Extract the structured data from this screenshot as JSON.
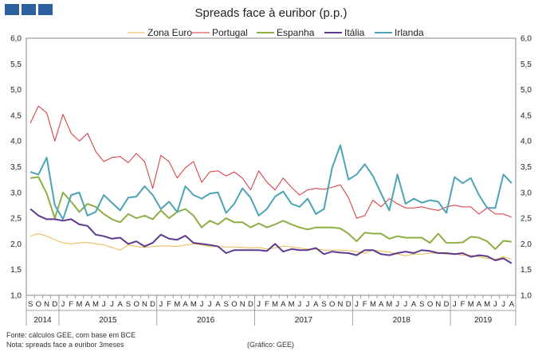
{
  "chart_data": {
    "type": "line",
    "title": "Spreads face à euribor (p.p.)",
    "ylim": [
      1.0,
      6.0
    ],
    "yticks": [
      "1,0",
      "1,5",
      "2,0",
      "2,5",
      "3,0",
      "3,5",
      "4,0",
      "4,5",
      "5,0",
      "5,5",
      "6,0"
    ],
    "month_labels": [
      "S",
      "O",
      "N",
      "D",
      "J",
      "F",
      "M",
      "A",
      "M",
      "J",
      "J",
      "A",
      "S",
      "O",
      "N",
      "D",
      "J",
      "F",
      "M",
      "A",
      "M",
      "J",
      "J",
      "A",
      "S",
      "O",
      "N",
      "D",
      "J",
      "F",
      "M",
      "A",
      "M",
      "J",
      "J",
      "A",
      "S",
      "O",
      "N",
      "D",
      "J",
      "F",
      "M",
      "A",
      "M",
      "J",
      "J",
      "A",
      "S",
      "O",
      "N",
      "D",
      "J",
      "F",
      "M",
      "A",
      "M",
      "J",
      "J",
      "A"
    ],
    "years": [
      {
        "label": "2014",
        "start": 0,
        "end": 3
      },
      {
        "label": "2015",
        "start": 4,
        "end": 15
      },
      {
        "label": "2016",
        "start": 16,
        "end": 27
      },
      {
        "label": "2017",
        "start": 28,
        "end": 39
      },
      {
        "label": "2018",
        "start": 40,
        "end": 51
      },
      {
        "label": "2019",
        "start": 52,
        "end": 59
      }
    ],
    "series": [
      {
        "name": "Zona Euro",
        "color": "#E6B84A",
        "width": 1.0,
        "values": [
          2.15,
          2.2,
          2.15,
          2.08,
          2.02,
          2.0,
          2.02,
          2.03,
          2.0,
          1.98,
          1.93,
          1.88,
          1.98,
          1.95,
          1.93,
          1.95,
          1.96,
          1.96,
          1.95,
          1.98,
          2.0,
          1.98,
          1.95,
          1.95,
          1.94,
          1.94,
          1.93,
          1.92,
          1.93,
          1.9,
          1.92,
          1.96,
          1.94,
          1.92,
          1.9,
          1.9,
          1.88,
          1.88,
          1.88,
          1.87,
          1.85,
          1.82,
          1.88,
          1.86,
          1.84,
          1.8,
          1.77,
          1.8,
          1.8,
          1.82,
          1.82,
          1.8,
          1.8,
          1.78,
          1.78,
          1.75,
          1.72,
          1.7,
          1.75,
          1.7
        ]
      },
      {
        "name": "Portugal",
        "color": "#D9333A",
        "width": 1.0,
        "values": [
          4.35,
          4.68,
          4.55,
          4.0,
          4.52,
          4.15,
          4.0,
          4.15,
          3.8,
          3.6,
          3.68,
          3.7,
          3.58,
          3.76,
          3.6,
          3.08,
          3.72,
          3.6,
          3.28,
          3.48,
          3.6,
          3.2,
          3.4,
          3.42,
          3.32,
          3.4,
          3.28,
          3.05,
          3.42,
          3.2,
          3.05,
          3.28,
          3.1,
          2.95,
          3.05,
          3.08,
          3.06,
          3.1,
          3.15,
          2.9,
          2.5,
          2.55,
          2.85,
          2.72,
          2.88,
          2.78,
          2.7,
          2.7,
          2.72,
          2.68,
          2.65,
          2.72,
          2.75,
          2.72,
          2.72,
          2.58,
          2.7,
          2.58,
          2.58,
          2.52
        ]
      },
      {
        "name": "Espanha",
        "color": "#8DAE45",
        "width": 2.0,
        "values": [
          3.28,
          3.3,
          2.98,
          2.5,
          3.0,
          2.82,
          2.62,
          2.78,
          2.72,
          2.58,
          2.48,
          2.42,
          2.58,
          2.5,
          2.55,
          2.48,
          2.65,
          2.5,
          2.62,
          2.68,
          2.55,
          2.32,
          2.45,
          2.38,
          2.5,
          2.42,
          2.42,
          2.32,
          2.4,
          2.32,
          2.38,
          2.45,
          2.38,
          2.32,
          2.28,
          2.32,
          2.32,
          2.32,
          2.3,
          2.2,
          2.05,
          2.22,
          2.2,
          2.2,
          2.1,
          2.15,
          2.12,
          2.12,
          2.12,
          2.02,
          2.2,
          2.02,
          2.02,
          2.03,
          2.14,
          2.12,
          2.05,
          1.9,
          2.06,
          2.04
        ]
      },
      {
        "name": "Itália",
        "color": "#5E3A8E",
        "width": 2.0,
        "values": [
          2.68,
          2.55,
          2.48,
          2.48,
          2.45,
          2.48,
          2.38,
          2.35,
          2.18,
          2.15,
          2.1,
          2.12,
          2.0,
          2.05,
          1.95,
          2.02,
          2.18,
          2.1,
          2.08,
          2.16,
          2.02,
          2.0,
          1.98,
          1.95,
          1.82,
          1.88,
          1.88,
          1.88,
          1.88,
          1.86,
          2.0,
          1.85,
          1.9,
          1.88,
          1.88,
          1.92,
          1.8,
          1.85,
          1.83,
          1.82,
          1.78,
          1.88,
          1.88,
          1.8,
          1.78,
          1.82,
          1.85,
          1.82,
          1.88,
          1.86,
          1.82,
          1.82,
          1.8,
          1.82,
          1.75,
          1.78,
          1.76,
          1.68,
          1.72,
          1.62
        ]
      },
      {
        "name": "Irlanda",
        "color": "#4CA3B6",
        "width": 2.0,
        "values": [
          3.4,
          3.35,
          3.68,
          2.75,
          2.48,
          2.95,
          3.0,
          2.55,
          2.62,
          2.95,
          2.8,
          2.65,
          2.9,
          2.92,
          3.12,
          2.95,
          2.68,
          2.82,
          2.62,
          3.12,
          2.95,
          2.88,
          2.98,
          3.0,
          2.6,
          2.78,
          3.08,
          2.9,
          2.55,
          2.68,
          2.92,
          3.02,
          2.78,
          2.72,
          2.88,
          2.58,
          2.68,
          3.48,
          3.92,
          3.25,
          3.35,
          3.55,
          3.32,
          2.98,
          2.65,
          3.35,
          2.78,
          2.88,
          2.8,
          2.85,
          2.82,
          2.6,
          3.3,
          3.18,
          3.28,
          2.95,
          2.7,
          2.7,
          3.35,
          3.18
        ]
      }
    ]
  },
  "notes": {
    "source": "Fonte: cálculos GEE, com base em BCE",
    "note": "Nota: spreads face a euribor 3meses",
    "credit": "(Gráfico: GEE)"
  }
}
